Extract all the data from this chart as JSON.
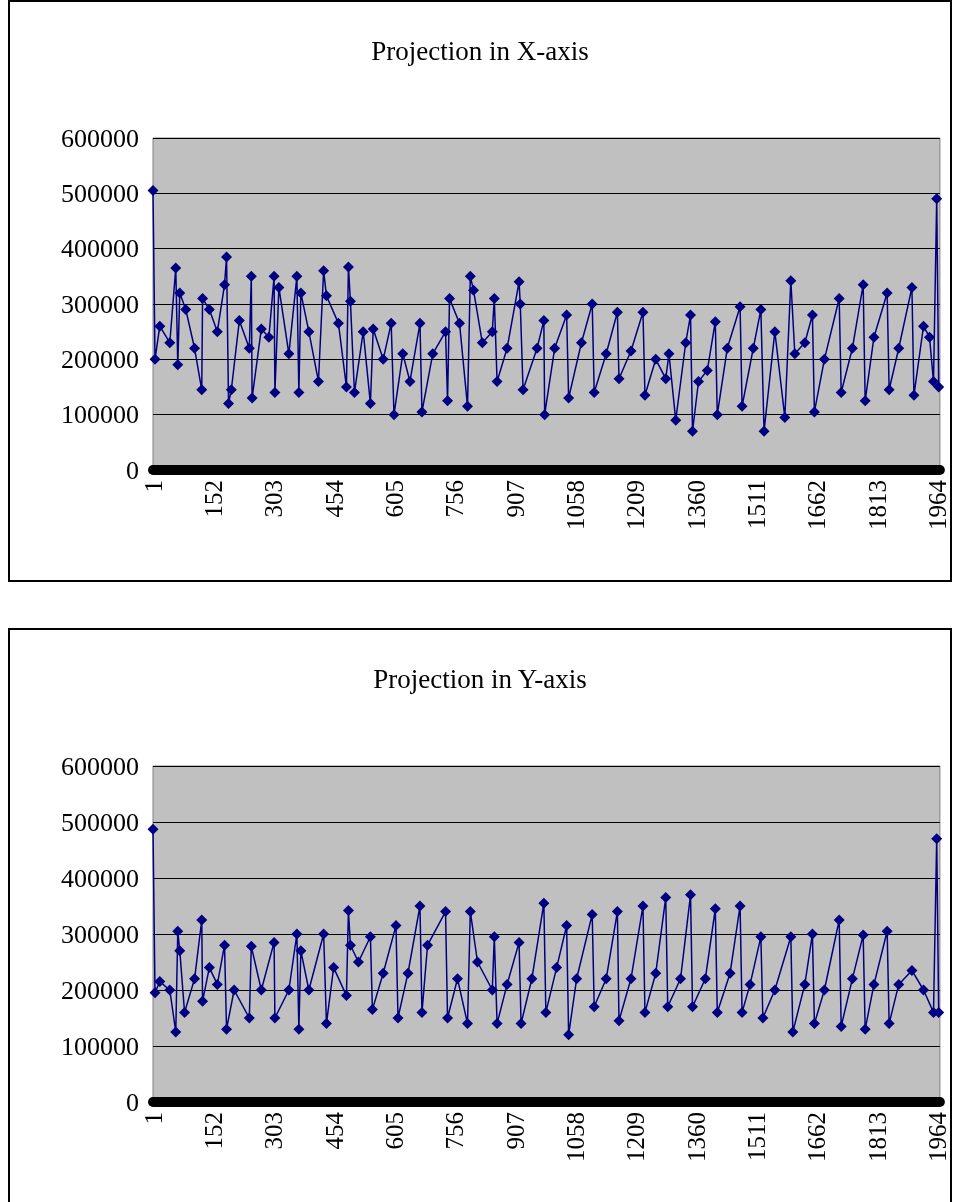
{
  "chart_data": [
    {
      "type": "line",
      "title": "Projection in X-axis",
      "marker": "diamond",
      "grid": "y",
      "xlim": [
        1,
        1970
      ],
      "xticks": [
        1,
        152,
        303,
        454,
        605,
        756,
        907,
        1058,
        1209,
        1360,
        1511,
        1662,
        1813,
        1964
      ],
      "ylim": [
        0,
        600000
      ],
      "yticks": [
        0,
        100000,
        200000,
        300000,
        400000,
        500000,
        600000
      ],
      "series": [
        {
          "color": "#000080",
          "x": [
            1,
            6,
            18,
            43,
            58,
            63,
            68,
            83,
            105,
            123,
            125,
            142,
            162,
            180,
            185,
            190,
            197,
            217,
            242,
            247,
            249,
            272,
            291,
            304,
            306,
            316,
            341,
            361,
            366,
            371,
            391,
            415,
            428,
            435,
            465,
            485,
            490,
            495,
            505,
            527,
            545,
            552,
            577,
            597,
            604,
            626,
            644,
            669,
            674,
            701,
            733,
            738,
            743,
            768,
            788,
            795,
            803,
            825,
            850,
            855,
            862,
            887,
            917,
            920,
            927,
            962,
            979,
            981,
            1006,
            1036,
            1041,
            1073,
            1100,
            1105,
            1135,
            1163,
            1167,
            1197,
            1227,
            1232,
            1259,
            1284,
            1292,
            1309,
            1334,
            1346,
            1351,
            1366,
            1388,
            1408,
            1413,
            1438,
            1470,
            1475,
            1503,
            1522,
            1530,
            1557,
            1582,
            1597,
            1607,
            1632,
            1651,
            1656,
            1681,
            1718,
            1723,
            1751,
            1778,
            1783,
            1805,
            1838,
            1843,
            1867,
            1900,
            1905,
            1929,
            1944,
            1954,
            1962,
            1967
          ],
          "values": [
            505000,
            200000,
            260000,
            230000,
            365000,
            190000,
            320000,
            290000,
            220000,
            145000,
            310000,
            290000,
            250000,
            335000,
            385000,
            120000,
            145000,
            270000,
            220000,
            350000,
            130000,
            255000,
            240000,
            350000,
            140000,
            330000,
            210000,
            350000,
            140000,
            320000,
            250000,
            160000,
            360000,
            315000,
            265000,
            150000,
            367000,
            305000,
            140000,
            250000,
            120000,
            255000,
            200000,
            265000,
            100000,
            210000,
            160000,
            265000,
            105000,
            210000,
            250000,
            125000,
            310000,
            265000,
            115000,
            350000,
            325000,
            230000,
            250000,
            310000,
            160000,
            220000,
            340000,
            300000,
            145000,
            220000,
            270000,
            100000,
            220000,
            280000,
            130000,
            230000,
            300000,
            140000,
            210000,
            285000,
            165000,
            215000,
            285000,
            135000,
            200000,
            165000,
            210000,
            90000,
            230000,
            280000,
            70000,
            160000,
            180000,
            268000,
            100000,
            220000,
            295000,
            115000,
            220000,
            290000,
            70000,
            250000,
            95000,
            342000,
            210000,
            230000,
            280000,
            105000,
            200000,
            310000,
            140000,
            220000,
            335000,
            125000,
            240000,
            320000,
            145000,
            220000,
            330000,
            135000,
            260000,
            240000,
            160000,
            490000,
            150000
          ]
        }
      ]
    },
    {
      "type": "line",
      "title": "Projection in Y-axis",
      "marker": "diamond",
      "grid": "y",
      "xlim": [
        1,
        1970
      ],
      "xticks": [
        1,
        152,
        303,
        454,
        605,
        756,
        907,
        1058,
        1209,
        1360,
        1511,
        1662,
        1813,
        1964
      ],
      "ylim": [
        0,
        600000
      ],
      "yticks": [
        0,
        100000,
        200000,
        300000,
        400000,
        500000,
        600000
      ],
      "series": [
        {
          "color": "#000080",
          "x": [
            1,
            6,
            18,
            43,
            58,
            63,
            68,
            80,
            105,
            123,
            125,
            142,
            162,
            180,
            185,
            204,
            242,
            247,
            272,
            304,
            306,
            341,
            361,
            366,
            371,
            391,
            428,
            435,
            453,
            485,
            490,
            495,
            515,
            545,
            550,
            577,
            609,
            614,
            639,
            669,
            674,
            688,
            733,
            738,
            763,
            788,
            795,
            813,
            850,
            855,
            862,
            887,
            917,
            922,
            949,
            979,
            984,
            1011,
            1036,
            1041,
            1061,
            1100,
            1105,
            1135,
            1163,
            1167,
            1197,
            1227,
            1232,
            1259,
            1284,
            1289,
            1321,
            1346,
            1351,
            1383,
            1408,
            1413,
            1445,
            1470,
            1475,
            1495,
            1522,
            1527,
            1557,
            1597,
            1602,
            1632,
            1651,
            1656,
            1681,
            1718,
            1723,
            1751,
            1778,
            1783,
            1805,
            1838,
            1843,
            1867,
            1900,
            1929,
            1954,
            1962,
            1967
          ],
          "values": [
            487000,
            195000,
            215000,
            200000,
            125000,
            305000,
            270000,
            160000,
            220000,
            325000,
            180000,
            240000,
            210000,
            280000,
            130000,
            200000,
            150000,
            278000,
            200000,
            285000,
            150000,
            200000,
            300000,
            130000,
            270000,
            200000,
            300000,
            140000,
            240000,
            190000,
            342000,
            280000,
            250000,
            295000,
            165000,
            230000,
            315000,
            150000,
            230000,
            350000,
            160000,
            280000,
            340000,
            150000,
            220000,
            140000,
            340000,
            250000,
            200000,
            295000,
            140000,
            210000,
            285000,
            140000,
            220000,
            355000,
            160000,
            240000,
            315000,
            120000,
            220000,
            335000,
            170000,
            220000,
            340000,
            145000,
            220000,
            350000,
            160000,
            230000,
            365000,
            170000,
            220000,
            370000,
            170000,
            220000,
            345000,
            160000,
            230000,
            350000,
            160000,
            210000,
            295000,
            150000,
            200000,
            295000,
            125000,
            210000,
            300000,
            140000,
            200000,
            325000,
            135000,
            220000,
            298000,
            130000,
            210000,
            305000,
            140000,
            210000,
            235000,
            200000,
            160000,
            470000,
            160000
          ]
        }
      ]
    }
  ]
}
